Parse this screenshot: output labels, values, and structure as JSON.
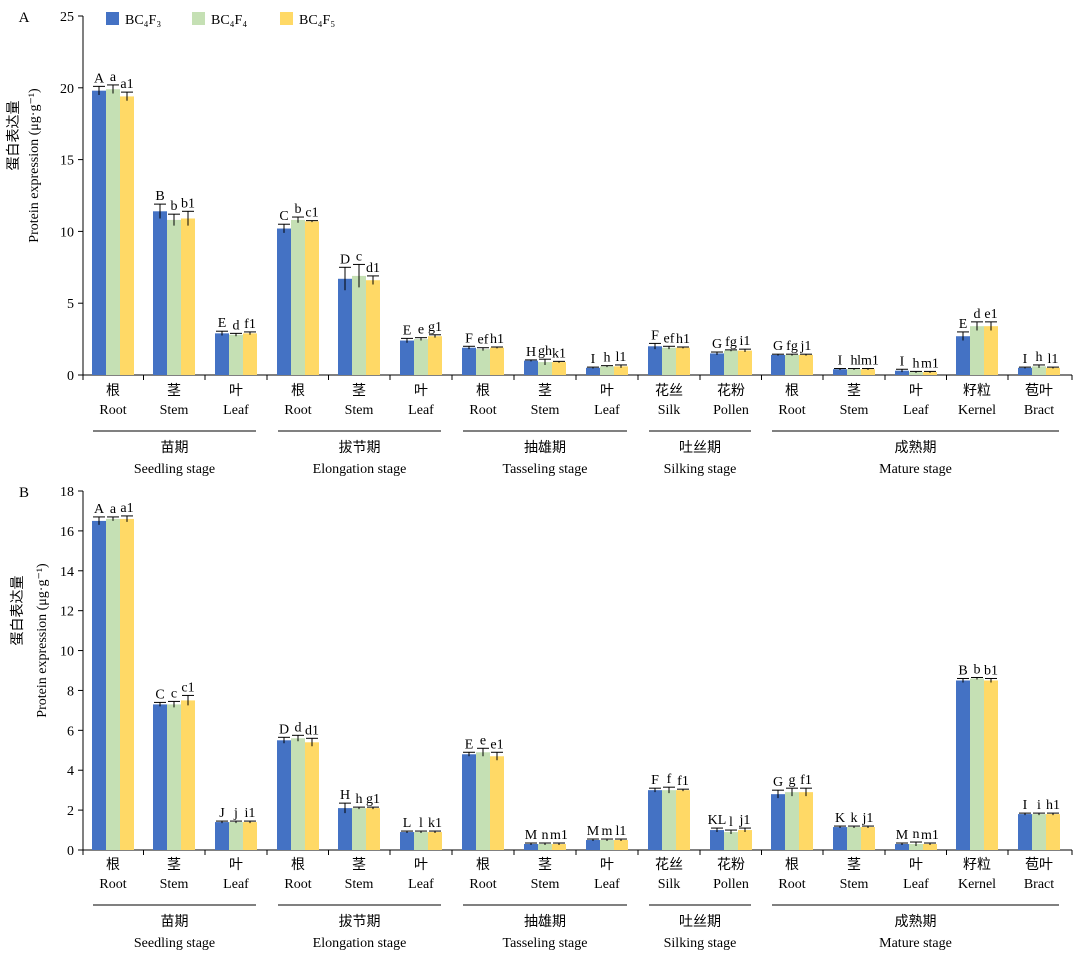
{
  "legend": [
    {
      "label": "BC₄F₃",
      "color": "#4472C4"
    },
    {
      "label": "BC₄F₄",
      "color": "#C5E0B4"
    },
    {
      "label": "BC₄F₅",
      "color": "#FFD966"
    }
  ],
  "groups": [
    {
      "cn": "苗期",
      "en": "Seedling stage",
      "first": 0,
      "last": 2
    },
    {
      "cn": "拔节期",
      "en": "Elongation stage",
      "first": 3,
      "last": 5
    },
    {
      "cn": "抽雄期",
      "en": "Tasseling stage",
      "first": 6,
      "last": 8
    },
    {
      "cn": "吐丝期",
      "en": "Silking stage",
      "first": 9,
      "last": 10
    },
    {
      "cn": "成熟期",
      "en": "Mature stage",
      "first": 11,
      "last": 15
    }
  ],
  "tissues": [
    {
      "cn": "根",
      "en": "Root"
    },
    {
      "cn": "茎",
      "en": "Stem"
    },
    {
      "cn": "叶",
      "en": "Leaf"
    },
    {
      "cn": "根",
      "en": "Root"
    },
    {
      "cn": "茎",
      "en": "Stem"
    },
    {
      "cn": "叶",
      "en": "Leaf"
    },
    {
      "cn": "根",
      "en": "Root"
    },
    {
      "cn": "茎",
      "en": "Stem"
    },
    {
      "cn": "叶",
      "en": "Leaf"
    },
    {
      "cn": "花丝",
      "en": "Silk"
    },
    {
      "cn": "花粉",
      "en": "Pollen"
    },
    {
      "cn": "根",
      "en": "Root"
    },
    {
      "cn": "茎",
      "en": "Stem"
    },
    {
      "cn": "叶",
      "en": "Leaf"
    },
    {
      "cn": "籽粒",
      "en": "Kernel"
    },
    {
      "cn": "苞叶",
      "en": "Bract"
    }
  ],
  "chart_data": [
    {
      "panel": "A",
      "type": "bar",
      "ylabel_cn": "蛋白表达量",
      "ylabel_en": "Protein expression (μg·g⁻¹)",
      "ylim": [
        0,
        25
      ],
      "yticks": [
        0,
        5,
        10,
        15,
        20,
        25
      ],
      "series": [
        {
          "name": "BC₄F₃",
          "values": [
            19.8,
            11.4,
            2.9,
            10.2,
            6.7,
            2.4,
            1.9,
            1.0,
            0.5,
            2.0,
            1.5,
            1.4,
            0.4,
            0.3,
            2.7,
            0.5
          ],
          "errors": [
            0.3,
            0.5,
            0.15,
            0.3,
            0.8,
            0.15,
            0.1,
            0.05,
            0.05,
            0.2,
            0.1,
            0.05,
            0.05,
            0.1,
            0.3,
            0.05
          ]
        },
        {
          "name": "BC₄F₄",
          "values": [
            19.9,
            10.8,
            2.8,
            10.8,
            6.9,
            2.5,
            1.8,
            0.9,
            0.6,
            1.9,
            1.7,
            1.4,
            0.4,
            0.2,
            3.4,
            0.6
          ],
          "errors": [
            0.3,
            0.4,
            0.1,
            0.2,
            0.8,
            0.1,
            0.1,
            0.2,
            0.05,
            0.1,
            0.05,
            0.05,
            0.05,
            0.05,
            0.3,
            0.1
          ]
        },
        {
          "name": "BC₄F₅",
          "values": [
            19.4,
            10.9,
            2.9,
            10.7,
            6.6,
            2.7,
            1.9,
            0.9,
            0.6,
            1.9,
            1.7,
            1.4,
            0.4,
            0.2,
            3.4,
            0.5
          ],
          "errors": [
            0.3,
            0.5,
            0.1,
            0.05,
            0.3,
            0.1,
            0.05,
            0.05,
            0.1,
            0.05,
            0.1,
            0.05,
            0.05,
            0.05,
            0.3,
            0.05
          ]
        }
      ],
      "letters": [
        [
          "A",
          "a",
          "a1"
        ],
        [
          "B",
          "b",
          "b1"
        ],
        [
          "E",
          "d",
          "f1"
        ],
        [
          "C",
          "b",
          "c1"
        ],
        [
          "D",
          "c",
          "d1"
        ],
        [
          "E",
          "e",
          "g1"
        ],
        [
          "F",
          "ef",
          "h1"
        ],
        [
          "H",
          "gh",
          "k1"
        ],
        [
          "I",
          "h",
          "l1"
        ],
        [
          "F",
          "ef",
          "h1"
        ],
        [
          "G",
          "fg",
          "i1"
        ],
        [
          "G",
          "fg",
          "j1"
        ],
        [
          "I",
          "h",
          "lm1"
        ],
        [
          "I",
          "h",
          "m1"
        ],
        [
          "E",
          "d",
          "e1"
        ],
        [
          "I",
          "h",
          "l1"
        ]
      ]
    },
    {
      "panel": "B",
      "type": "bar",
      "ylabel_cn": "蛋白表达量",
      "ylabel_en": "Protein expression (μg·g⁻¹)",
      "ylim": [
        0,
        18
      ],
      "yticks": [
        0,
        2,
        4,
        6,
        8,
        10,
        12,
        14,
        16,
        18
      ],
      "series": [
        {
          "name": "BC₄F₃",
          "values": [
            16.5,
            7.3,
            1.4,
            5.5,
            2.1,
            0.9,
            4.8,
            0.3,
            0.5,
            3.0,
            1.0,
            2.8,
            1.15,
            0.3,
            8.5,
            1.8
          ],
          "errors": [
            0.2,
            0.1,
            0.05,
            0.15,
            0.25,
            0.05,
            0.1,
            0.05,
            0.05,
            0.1,
            0.1,
            0.2,
            0.05,
            0.05,
            0.1,
            0.05
          ]
        },
        {
          "name": "BC₄F₄",
          "values": [
            16.6,
            7.3,
            1.4,
            5.6,
            2.1,
            0.9,
            4.9,
            0.3,
            0.5,
            3.0,
            0.9,
            2.9,
            1.15,
            0.3,
            8.6,
            1.8
          ],
          "errors": [
            0.1,
            0.15,
            0.05,
            0.15,
            0.05,
            0.05,
            0.2,
            0.05,
            0.05,
            0.15,
            0.1,
            0.2,
            0.05,
            0.1,
            0.05,
            0.05
          ]
        },
        {
          "name": "BC₄F₅",
          "values": [
            16.6,
            7.5,
            1.4,
            5.4,
            2.1,
            0.9,
            4.7,
            0.3,
            0.5,
            3.0,
            1.0,
            2.9,
            1.15,
            0.3,
            8.5,
            1.8
          ],
          "errors": [
            0.15,
            0.25,
            0.05,
            0.2,
            0.05,
            0.05,
            0.2,
            0.05,
            0.05,
            0.05,
            0.1,
            0.2,
            0.05,
            0.05,
            0.1,
            0.05
          ]
        }
      ],
      "letters": [
        [
          "A",
          "a",
          "a1"
        ],
        [
          "C",
          "c",
          "c1"
        ],
        [
          "J",
          "j",
          "i1"
        ],
        [
          "D",
          "d",
          "d1"
        ],
        [
          "H",
          "h",
          "g1"
        ],
        [
          "L",
          "l",
          "k1"
        ],
        [
          "E",
          "e",
          "e1"
        ],
        [
          "M",
          "n",
          "m1"
        ],
        [
          "M",
          "m",
          "l1"
        ],
        [
          "F",
          "f",
          "f1"
        ],
        [
          "KL",
          "l",
          "j1"
        ],
        [
          "G",
          "g",
          "f1"
        ],
        [
          "K",
          "k",
          "j1"
        ],
        [
          "M",
          "n",
          "m1"
        ],
        [
          "B",
          "b",
          "b1"
        ],
        [
          "I",
          "i",
          "h1"
        ]
      ]
    }
  ]
}
